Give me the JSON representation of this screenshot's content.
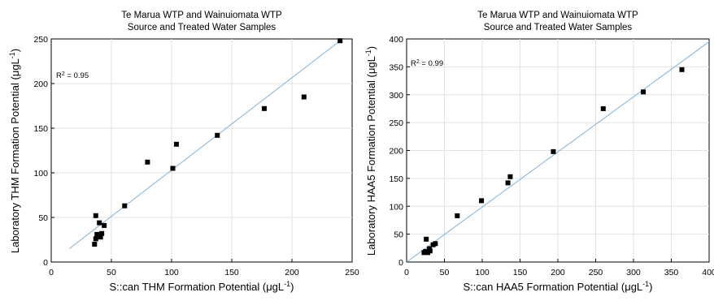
{
  "chart_data": [
    {
      "type": "scatter",
      "title": "Te Marua WTP and Wainuiomata WTP",
      "subtitle": "Source and Treated Water Samples",
      "xlabel": "S::can THM Formation Potential",
      "xunit": "μgL",
      "ylabel": "Laboratory THM Formation Potential",
      "yunit": "μgL",
      "xlim": [
        0,
        250
      ],
      "ylim": [
        0,
        250
      ],
      "xticks": [
        "0",
        "50",
        "100",
        "150",
        "200",
        "250"
      ],
      "yticks": [
        "0",
        "50",
        "100",
        "150",
        "200",
        "250"
      ],
      "grid": true,
      "annotation": "R",
      "annotation_sup": "2",
      "annotation_value": " = 0.95",
      "fit_line": {
        "x": [
          15,
          242
        ],
        "y": [
          15,
          250
        ]
      },
      "points": [
        {
          "x": 36,
          "y": 20
        },
        {
          "x": 37,
          "y": 26
        },
        {
          "x": 38,
          "y": 31
        },
        {
          "x": 37,
          "y": 52
        },
        {
          "x": 40,
          "y": 44
        },
        {
          "x": 41,
          "y": 28
        },
        {
          "x": 42,
          "y": 32
        },
        {
          "x": 44,
          "y": 41
        },
        {
          "x": 61,
          "y": 63
        },
        {
          "x": 80,
          "y": 112
        },
        {
          "x": 101,
          "y": 105
        },
        {
          "x": 104,
          "y": 132
        },
        {
          "x": 138,
          "y": 142
        },
        {
          "x": 177,
          "y": 172
        },
        {
          "x": 210,
          "y": 185
        },
        {
          "x": 240,
          "y": 248
        }
      ]
    },
    {
      "type": "scatter",
      "title": "Te Marua WTP and Wainuiomata WTP",
      "subtitle": "Source and Treated Water Samples",
      "xlabel": "S::can HAA5 Formation Potential",
      "xunit": "μgL",
      "ylabel": "Laboratory HAA5 Formation Potential",
      "yunit": "μgL",
      "xlim": [
        0,
        400
      ],
      "ylim": [
        0,
        400
      ],
      "xticks": [
        "0",
        "50",
        "100",
        "150",
        "200",
        "250",
        "300",
        "350",
        "400"
      ],
      "yticks": [
        "0",
        "50",
        "100",
        "150",
        "200",
        "250",
        "300",
        "350",
        "400"
      ],
      "grid": true,
      "annotation": "R",
      "annotation_sup": "2",
      "annotation_value": " = 0.99",
      "fit_line": {
        "x": [
          0,
          400
        ],
        "y": [
          0,
          395
        ]
      },
      "points": [
        {
          "x": 23,
          "y": 17
        },
        {
          "x": 25,
          "y": 19
        },
        {
          "x": 26,
          "y": 41
        },
        {
          "x": 28,
          "y": 17
        },
        {
          "x": 30,
          "y": 24
        },
        {
          "x": 31,
          "y": 20
        },
        {
          "x": 35,
          "y": 31
        },
        {
          "x": 38,
          "y": 33
        },
        {
          "x": 67,
          "y": 83
        },
        {
          "x": 99,
          "y": 110
        },
        {
          "x": 134,
          "y": 142
        },
        {
          "x": 137,
          "y": 153
        },
        {
          "x": 194,
          "y": 198
        },
        {
          "x": 260,
          "y": 275
        },
        {
          "x": 313,
          "y": 305
        },
        {
          "x": 364,
          "y": 345
        }
      ]
    }
  ]
}
